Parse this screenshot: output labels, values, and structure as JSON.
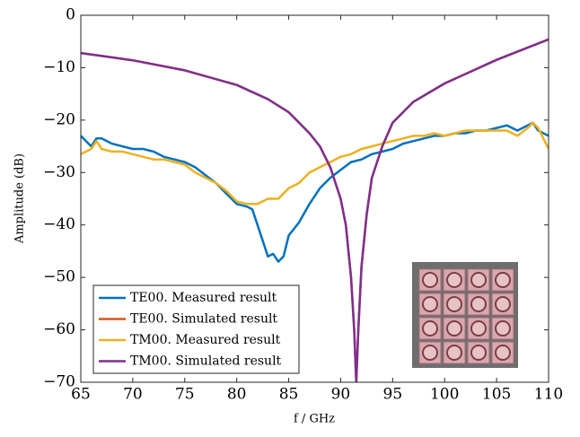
{
  "chart_data": {
    "type": "line",
    "x_label": "f / GHz",
    "y_label": "Amplitude (dB)",
    "xlim": [
      65,
      110
    ],
    "ylim": [
      -70,
      0
    ],
    "xticks": [
      65,
      70,
      75,
      80,
      85,
      90,
      95,
      100,
      105,
      110
    ],
    "yticks": [
      0,
      {
        "value": -10,
        "label": "−10"
      },
      {
        "value": -20,
        "label": "−20"
      },
      {
        "value": -30,
        "label": "−30"
      },
      {
        "value": -40,
        "label": "−40"
      },
      {
        "value": -50,
        "label": "−50"
      },
      {
        "value": -60,
        "label": "−60"
      },
      {
        "value": -70,
        "label": "−70"
      }
    ],
    "grid": false,
    "legend_position": "lower left",
    "series": [
      {
        "name": "TE00. Measured result",
        "color": "#0072bd",
        "x": [
          65,
          66,
          66.5,
          67,
          68,
          69,
          70,
          71,
          72,
          73,
          74,
          75,
          76,
          77,
          78,
          79,
          80,
          81,
          81.5,
          82,
          82.5,
          83,
          83.5,
          84,
          84.5,
          85,
          86,
          87,
          88,
          89,
          90,
          91,
          92,
          93,
          94,
          95,
          96,
          97,
          98,
          99,
          100,
          101,
          102,
          103,
          104,
          105,
          106,
          107,
          108,
          108.5,
          109,
          110
        ],
        "values": [
          -23,
          -25,
          -23.5,
          -23.5,
          -24.5,
          -25,
          -25.5,
          -25.5,
          -26,
          -27,
          -27.5,
          -28,
          -29,
          -30.5,
          -32,
          -34,
          -36,
          -36.5,
          -37,
          -40,
          -43,
          -46,
          -45.5,
          -47,
          -46,
          -42,
          -39.5,
          -36,
          -33,
          -31,
          -29.5,
          -28,
          -27.5,
          -26.5,
          -26,
          -25.5,
          -24.5,
          -24,
          -23.5,
          -23,
          -23,
          -22.5,
          -22.5,
          -22,
          -22,
          -21.5,
          -21,
          -22,
          -21,
          -20.5,
          -22,
          -23
        ]
      },
      {
        "name": "TE00. Simulated result",
        "color": "#d95319",
        "x": [
          65,
          70,
          75,
          80,
          83,
          85,
          87,
          88,
          89,
          90,
          90.5,
          91,
          91.3,
          91.5,
          91.7,
          92,
          92.5,
          93,
          94,
          95,
          97,
          100,
          105,
          110
        ],
        "values": [
          -7.2,
          -8.6,
          -10.5,
          -13.3,
          -16,
          -18.5,
          -22.5,
          -25,
          -29,
          -35,
          -40,
          -50,
          -60,
          -70,
          -60,
          -48,
          -38,
          -31,
          -25,
          -20.5,
          -16.5,
          -13,
          -8.5,
          -4.6
        ]
      },
      {
        "name": "TM00. Measured result",
        "color": "#edb120",
        "x": [
          65,
          66,
          66.5,
          67,
          68,
          69,
          70,
          71,
          72,
          73,
          74,
          75,
          76,
          77,
          78,
          79,
          80,
          81,
          82,
          83,
          84,
          85,
          86,
          87,
          88,
          89,
          90,
          91,
          92,
          93,
          94,
          95,
          96,
          97,
          98,
          99,
          100,
          101,
          102,
          103,
          104,
          105,
          106,
          107,
          108,
          108.5,
          109,
          110
        ],
        "values": [
          -26.5,
          -25.5,
          -24,
          -25.5,
          -26,
          -26,
          -26.5,
          -27,
          -27.5,
          -27.5,
          -28,
          -28.5,
          -30,
          -31,
          -32,
          -33.5,
          -35.5,
          -36,
          -36,
          -35,
          -35,
          -33,
          -32,
          -30,
          -29,
          -28,
          -27,
          -26.5,
          -25.5,
          -25,
          -24.5,
          -24,
          -23.5,
          -23,
          -23,
          -22.5,
          -23,
          -22.5,
          -22,
          -22,
          -22,
          -22,
          -22,
          -23,
          -21.5,
          -20.5,
          -21.5,
          -25.5
        ]
      },
      {
        "name": "TM00. Simulated result",
        "color": "#7e2f8e",
        "x": [
          65,
          70,
          75,
          80,
          83,
          85,
          87,
          88,
          89,
          90,
          90.5,
          91,
          91.3,
          91.5,
          91.7,
          92,
          92.5,
          93,
          94,
          95,
          97,
          100,
          105,
          110
        ],
        "values": [
          -7.2,
          -8.6,
          -10.5,
          -13.3,
          -16,
          -18.5,
          -22.5,
          -25,
          -29,
          -35,
          -40,
          -50,
          -60,
          -70,
          -60,
          -48,
          -38,
          -31,
          -25,
          -20.5,
          -16.5,
          -13,
          -8.5,
          -4.6
        ]
      }
    ]
  }
}
